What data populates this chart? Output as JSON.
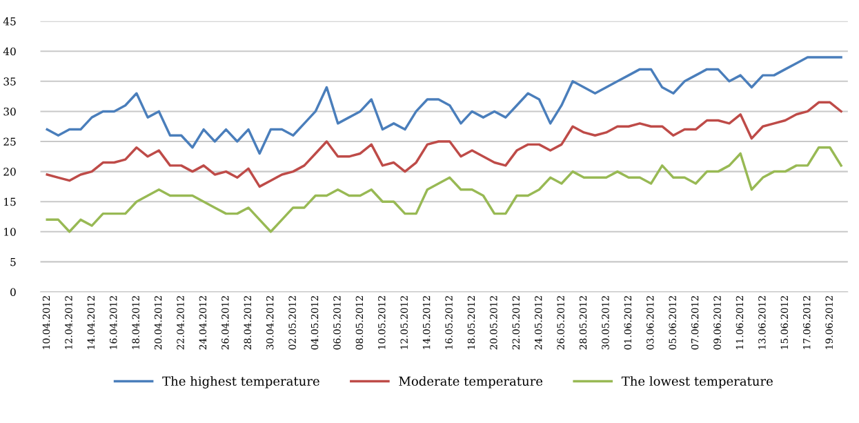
{
  "chart_data": {
    "type": "line",
    "categories": [
      "10.04.2012",
      null,
      "12.04.2012",
      null,
      "14.04.2012",
      null,
      "16.04.2012",
      null,
      "18.04.2012",
      null,
      "20.04.2012",
      null,
      "22.04.2012",
      null,
      "24.04.2012",
      null,
      "26.04.2012",
      null,
      "28.04.2012",
      null,
      "30.04.2012",
      null,
      "02.05.2012",
      null,
      "04.05.2012",
      null,
      "06.05.2012",
      null,
      "08.05.2012",
      null,
      "10.05.2012",
      null,
      "12.05.2012",
      null,
      "14.05.2012",
      null,
      "16.05.2012",
      null,
      "18.05.2012",
      null,
      "20.05.2012",
      null,
      "22.05.2012",
      null,
      "24.05.2012",
      null,
      "26.05.2012",
      null,
      "28.05.2012",
      null,
      "30.05.2012",
      null,
      "01.06.2012",
      null,
      "03.06.2012",
      null,
      "05.06.2012",
      null,
      "07.06.2012",
      null,
      "09.06.2012",
      null,
      "11.06.2012",
      null,
      "13.06.2012",
      null,
      "15.06.2012",
      null,
      "17.06.2012",
      null,
      "19.06.2012",
      null
    ],
    "series": [
      {
        "name": "The highest temperature",
        "color": "#4a7ebb",
        "values": [
          27,
          26,
          27,
          27,
          29,
          30,
          30,
          31,
          33,
          29,
          30,
          26,
          26,
          24,
          27,
          25,
          27,
          25,
          27,
          23,
          27,
          27,
          26,
          28,
          30,
          34,
          28,
          29,
          30,
          32,
          27,
          28,
          27,
          30,
          32,
          32,
          31,
          28,
          30,
          29,
          30,
          29,
          31,
          33,
          32,
          28,
          31,
          35,
          34,
          33,
          34,
          35,
          36,
          37,
          37,
          34,
          33,
          35,
          36,
          37,
          37,
          35,
          36,
          34,
          36,
          36,
          37,
          38,
          39,
          39,
          39,
          39
        ]
      },
      {
        "name": "Moderate temperature",
        "color": "#be4b48",
        "values": [
          19.5,
          19,
          18.5,
          19.5,
          20,
          21.5,
          21.5,
          22,
          24,
          22.5,
          23.5,
          21,
          21,
          20,
          21,
          19.5,
          20,
          19,
          20.5,
          17.5,
          18.5,
          19.5,
          20,
          21,
          23,
          25,
          22.5,
          22.5,
          23,
          24.5,
          21,
          21.5,
          20,
          21.5,
          24.5,
          25,
          25,
          22.5,
          23.5,
          22.5,
          21.5,
          21,
          23.5,
          24.5,
          24.5,
          23.5,
          24.5,
          27.5,
          26.5,
          26,
          26.5,
          27.5,
          27.5,
          28,
          27.5,
          27.5,
          26,
          27,
          27,
          28.5,
          28.5,
          28,
          29.5,
          25.5,
          27.5,
          28,
          28.5,
          29.5,
          30,
          31.5,
          31.5,
          30
        ]
      },
      {
        "name": "The lowest temperature",
        "color": "#98b954",
        "values": [
          12,
          12,
          10,
          12,
          11,
          13,
          13,
          13,
          15,
          16,
          17,
          16,
          16,
          16,
          15,
          14,
          13,
          13,
          14,
          12,
          10,
          12,
          14,
          14,
          16,
          16,
          17,
          16,
          16,
          17,
          15,
          15,
          13,
          13,
          17,
          18,
          19,
          17,
          17,
          16,
          13,
          13,
          16,
          16,
          17,
          19,
          18,
          20,
          19,
          19,
          19,
          20,
          19,
          19,
          18,
          21,
          19,
          19,
          18,
          20,
          20,
          21,
          23,
          17,
          19,
          20,
          20,
          21,
          21,
          24,
          24,
          21
        ]
      }
    ],
    "ylim": [
      0,
      45
    ],
    "yticks": [
      0,
      5,
      10,
      15,
      20,
      25,
      30,
      35,
      40,
      45
    ],
    "grid": "y",
    "legend": "bottom",
    "marker": "none",
    "line_style": "solid"
  }
}
